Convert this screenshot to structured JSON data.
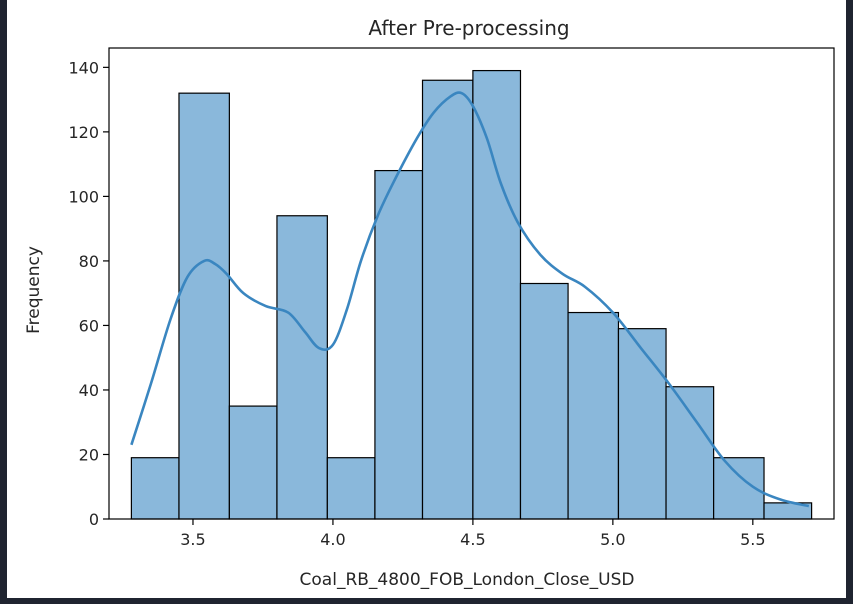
{
  "chart_data": {
    "type": "bar",
    "subtype": "histogram-with-kde",
    "title": "After Pre-processing",
    "xlabel": "Coal_RB_4800_FOB_London_Close_USD",
    "ylabel": "Frequency",
    "xlim": [
      3.2,
      5.79
    ],
    "ylim": [
      0,
      146
    ],
    "xticks": [
      3.5,
      4.0,
      4.5,
      5.0,
      5.5
    ],
    "xtick_labels": [
      "3.5",
      "4.0",
      "4.5",
      "5.0",
      "5.5"
    ],
    "yticks": [
      0,
      20,
      40,
      60,
      80,
      100,
      120,
      140
    ],
    "ytick_labels": [
      "0",
      "20",
      "40",
      "60",
      "80",
      "100",
      "120",
      "140"
    ],
    "bins": [
      {
        "x0": 3.28,
        "x1": 3.45,
        "count": 19
      },
      {
        "x0": 3.45,
        "x1": 3.63,
        "count": 132
      },
      {
        "x0": 3.63,
        "x1": 3.8,
        "count": 35
      },
      {
        "x0": 3.8,
        "x1": 3.98,
        "count": 94
      },
      {
        "x0": 3.98,
        "x1": 4.15,
        "count": 19
      },
      {
        "x0": 4.15,
        "x1": 4.32,
        "count": 108
      },
      {
        "x0": 4.32,
        "x1": 4.5,
        "count": 136
      },
      {
        "x0": 4.5,
        "x1": 4.67,
        "count": 139
      },
      {
        "x0": 4.67,
        "x1": 4.84,
        "count": 73
      },
      {
        "x0": 4.84,
        "x1": 5.02,
        "count": 64
      },
      {
        "x0": 5.02,
        "x1": 5.19,
        "count": 59
      },
      {
        "x0": 5.19,
        "x1": 5.36,
        "count": 41
      },
      {
        "x0": 5.36,
        "x1": 5.54,
        "count": 19
      },
      {
        "x0": 5.54,
        "x1": 5.71,
        "count": 5
      }
    ],
    "kde": {
      "x": [
        3.28,
        3.35,
        3.42,
        3.48,
        3.54,
        3.58,
        3.62,
        3.68,
        3.76,
        3.84,
        3.9,
        3.95,
        4.0,
        4.05,
        4.1,
        4.16,
        4.22,
        4.3,
        4.36,
        4.42,
        4.46,
        4.5,
        4.55,
        4.6,
        4.66,
        4.74,
        4.82,
        4.9,
        5.0,
        5.1,
        5.2,
        5.3,
        5.4,
        5.5,
        5.6,
        5.7
      ],
      "y": [
        23,
        42,
        62,
        75,
        80,
        79,
        76,
        70,
        66,
        64,
        58,
        53,
        54,
        65,
        80,
        94,
        105,
        118,
        126,
        131,
        132,
        128,
        118,
        104,
        92,
        82,
        76,
        72,
        64,
        53,
        42,
        30,
        18,
        10,
        6,
        4
      ]
    },
    "colors": {
      "bar_fill": "#8ab8db",
      "bar_edge": "#000000",
      "kde_line": "#3a86c0"
    },
    "grid": false,
    "legend": "none"
  }
}
